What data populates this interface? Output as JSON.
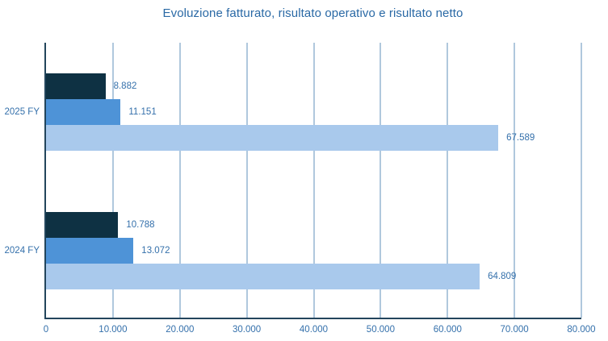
{
  "chart_data": {
    "type": "bar",
    "orientation": "horizontal",
    "title": "Evoluzione fatturato, risultato operativo e risultato netto",
    "categories": [
      "2025 FY",
      "2024 FY"
    ],
    "series": [
      {
        "name": "risultato-netto",
        "color": "#0e3143",
        "values": [
          8882,
          10788
        ],
        "labels": [
          "8.882",
          "10.788"
        ]
      },
      {
        "name": "risultato-operativo",
        "color": "#4e93d7",
        "values": [
          11151,
          13072
        ],
        "labels": [
          "11.151",
          "13.072"
        ]
      },
      {
        "name": "fatturato",
        "color": "#a9c9ec",
        "values": [
          67589,
          64809
        ],
        "labels": [
          "67.589",
          "64.809"
        ]
      }
    ],
    "xlim": [
      0,
      80000
    ],
    "x_ticks": [
      {
        "value": 0,
        "label": "0"
      },
      {
        "value": 10000,
        "label": "10.000"
      },
      {
        "value": 20000,
        "label": "20.000"
      },
      {
        "value": 30000,
        "label": "30.000"
      },
      {
        "value": 40000,
        "label": "40.000"
      },
      {
        "value": 50000,
        "label": "50.000"
      },
      {
        "value": 60000,
        "label": "60.000"
      },
      {
        "value": 70000,
        "label": "70.000"
      },
      {
        "value": 80000,
        "label": "80.000"
      }
    ],
    "grid": "vertical",
    "legend": "none",
    "colors": {
      "title_text": "#2a69a5",
      "label_text": "#3470ab",
      "axis_line": "#23455c",
      "grid_line": "#b0c8dd",
      "background": "#ffffff"
    }
  }
}
